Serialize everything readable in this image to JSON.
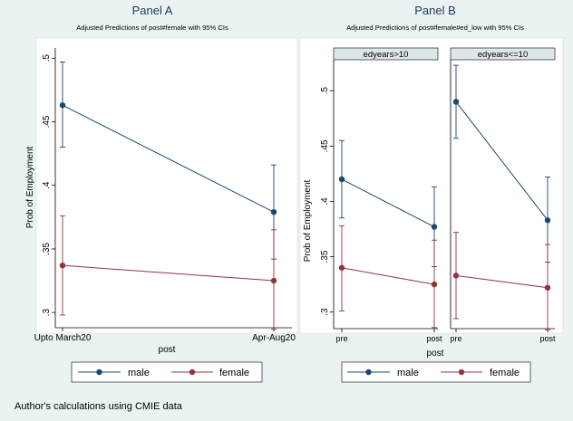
{
  "colors": {
    "background": "#eaf2f3",
    "plot_background": "#ffffff",
    "strip_background": "#dde6e9",
    "male": "#1a476f",
    "female": "#90353b",
    "text": "#000000"
  },
  "caption": "Author's calculations using CMIE data",
  "legend": {
    "items": [
      "male",
      "female"
    ]
  },
  "chart_data": [
    {
      "type": "line",
      "title": "Panel A",
      "subtitle": "Adjusted Predictions of post#female with 95% CIs",
      "xlabel": "post",
      "ylabel": "Prob of Employment",
      "categories": [
        "Upto March20",
        "Apr-Aug20"
      ],
      "y_ticks": [
        0.3,
        0.35,
        0.4,
        0.45,
        0.5
      ],
      "y_tick_labels": [
        ".3",
        ".35",
        ".4",
        ".45",
        ".5"
      ],
      "ylim": [
        0.288,
        0.508
      ],
      "grid": false,
      "legend": "bottom",
      "series": [
        {
          "name": "male",
          "values": [
            0.463,
            0.379
          ],
          "ci_low": [
            0.43,
            0.342
          ],
          "ci_high": [
            0.497,
            0.416
          ]
        },
        {
          "name": "female",
          "values": [
            0.337,
            0.325
          ],
          "ci_low": [
            0.298,
            0.287
          ],
          "ci_high": [
            0.376,
            0.365
          ]
        }
      ]
    },
    {
      "type": "line",
      "title": "Panel B",
      "subtitle": "Adjusted Predictions of post#female#ed_low with 95% CIs",
      "xlabel": "post",
      "ylabel": "Prob of Employment",
      "y_ticks": [
        0.3,
        0.35,
        0.4,
        0.45,
        0.5
      ],
      "y_tick_labels": [
        ".3",
        ".35",
        ".4",
        ".45",
        ".5"
      ],
      "ylim": [
        0.285,
        0.528
      ],
      "grid": false,
      "legend": "bottom",
      "facets": [
        {
          "label": "edyears>10",
          "categories": [
            "pre",
            "post"
          ],
          "series": [
            {
              "name": "male",
              "values": [
                0.42,
                0.377
              ],
              "ci_low": [
                0.385,
                0.341
              ],
              "ci_high": [
                0.455,
                0.413
              ]
            },
            {
              "name": "female",
              "values": [
                0.34,
                0.325
              ],
              "ci_low": [
                0.301,
                0.286
              ],
              "ci_high": [
                0.378,
                0.365
              ]
            }
          ]
        },
        {
          "label": "edyears<=10",
          "categories": [
            "pre",
            "post"
          ],
          "series": [
            {
              "name": "male",
              "values": [
                0.49,
                0.383
              ],
              "ci_low": [
                0.457,
                0.345
              ],
              "ci_high": [
                0.523,
                0.422
              ]
            },
            {
              "name": "female",
              "values": [
                0.333,
                0.322
              ],
              "ci_low": [
                0.294,
                0.284
              ],
              "ci_high": [
                0.372,
                0.361
              ]
            }
          ]
        }
      ]
    }
  ]
}
